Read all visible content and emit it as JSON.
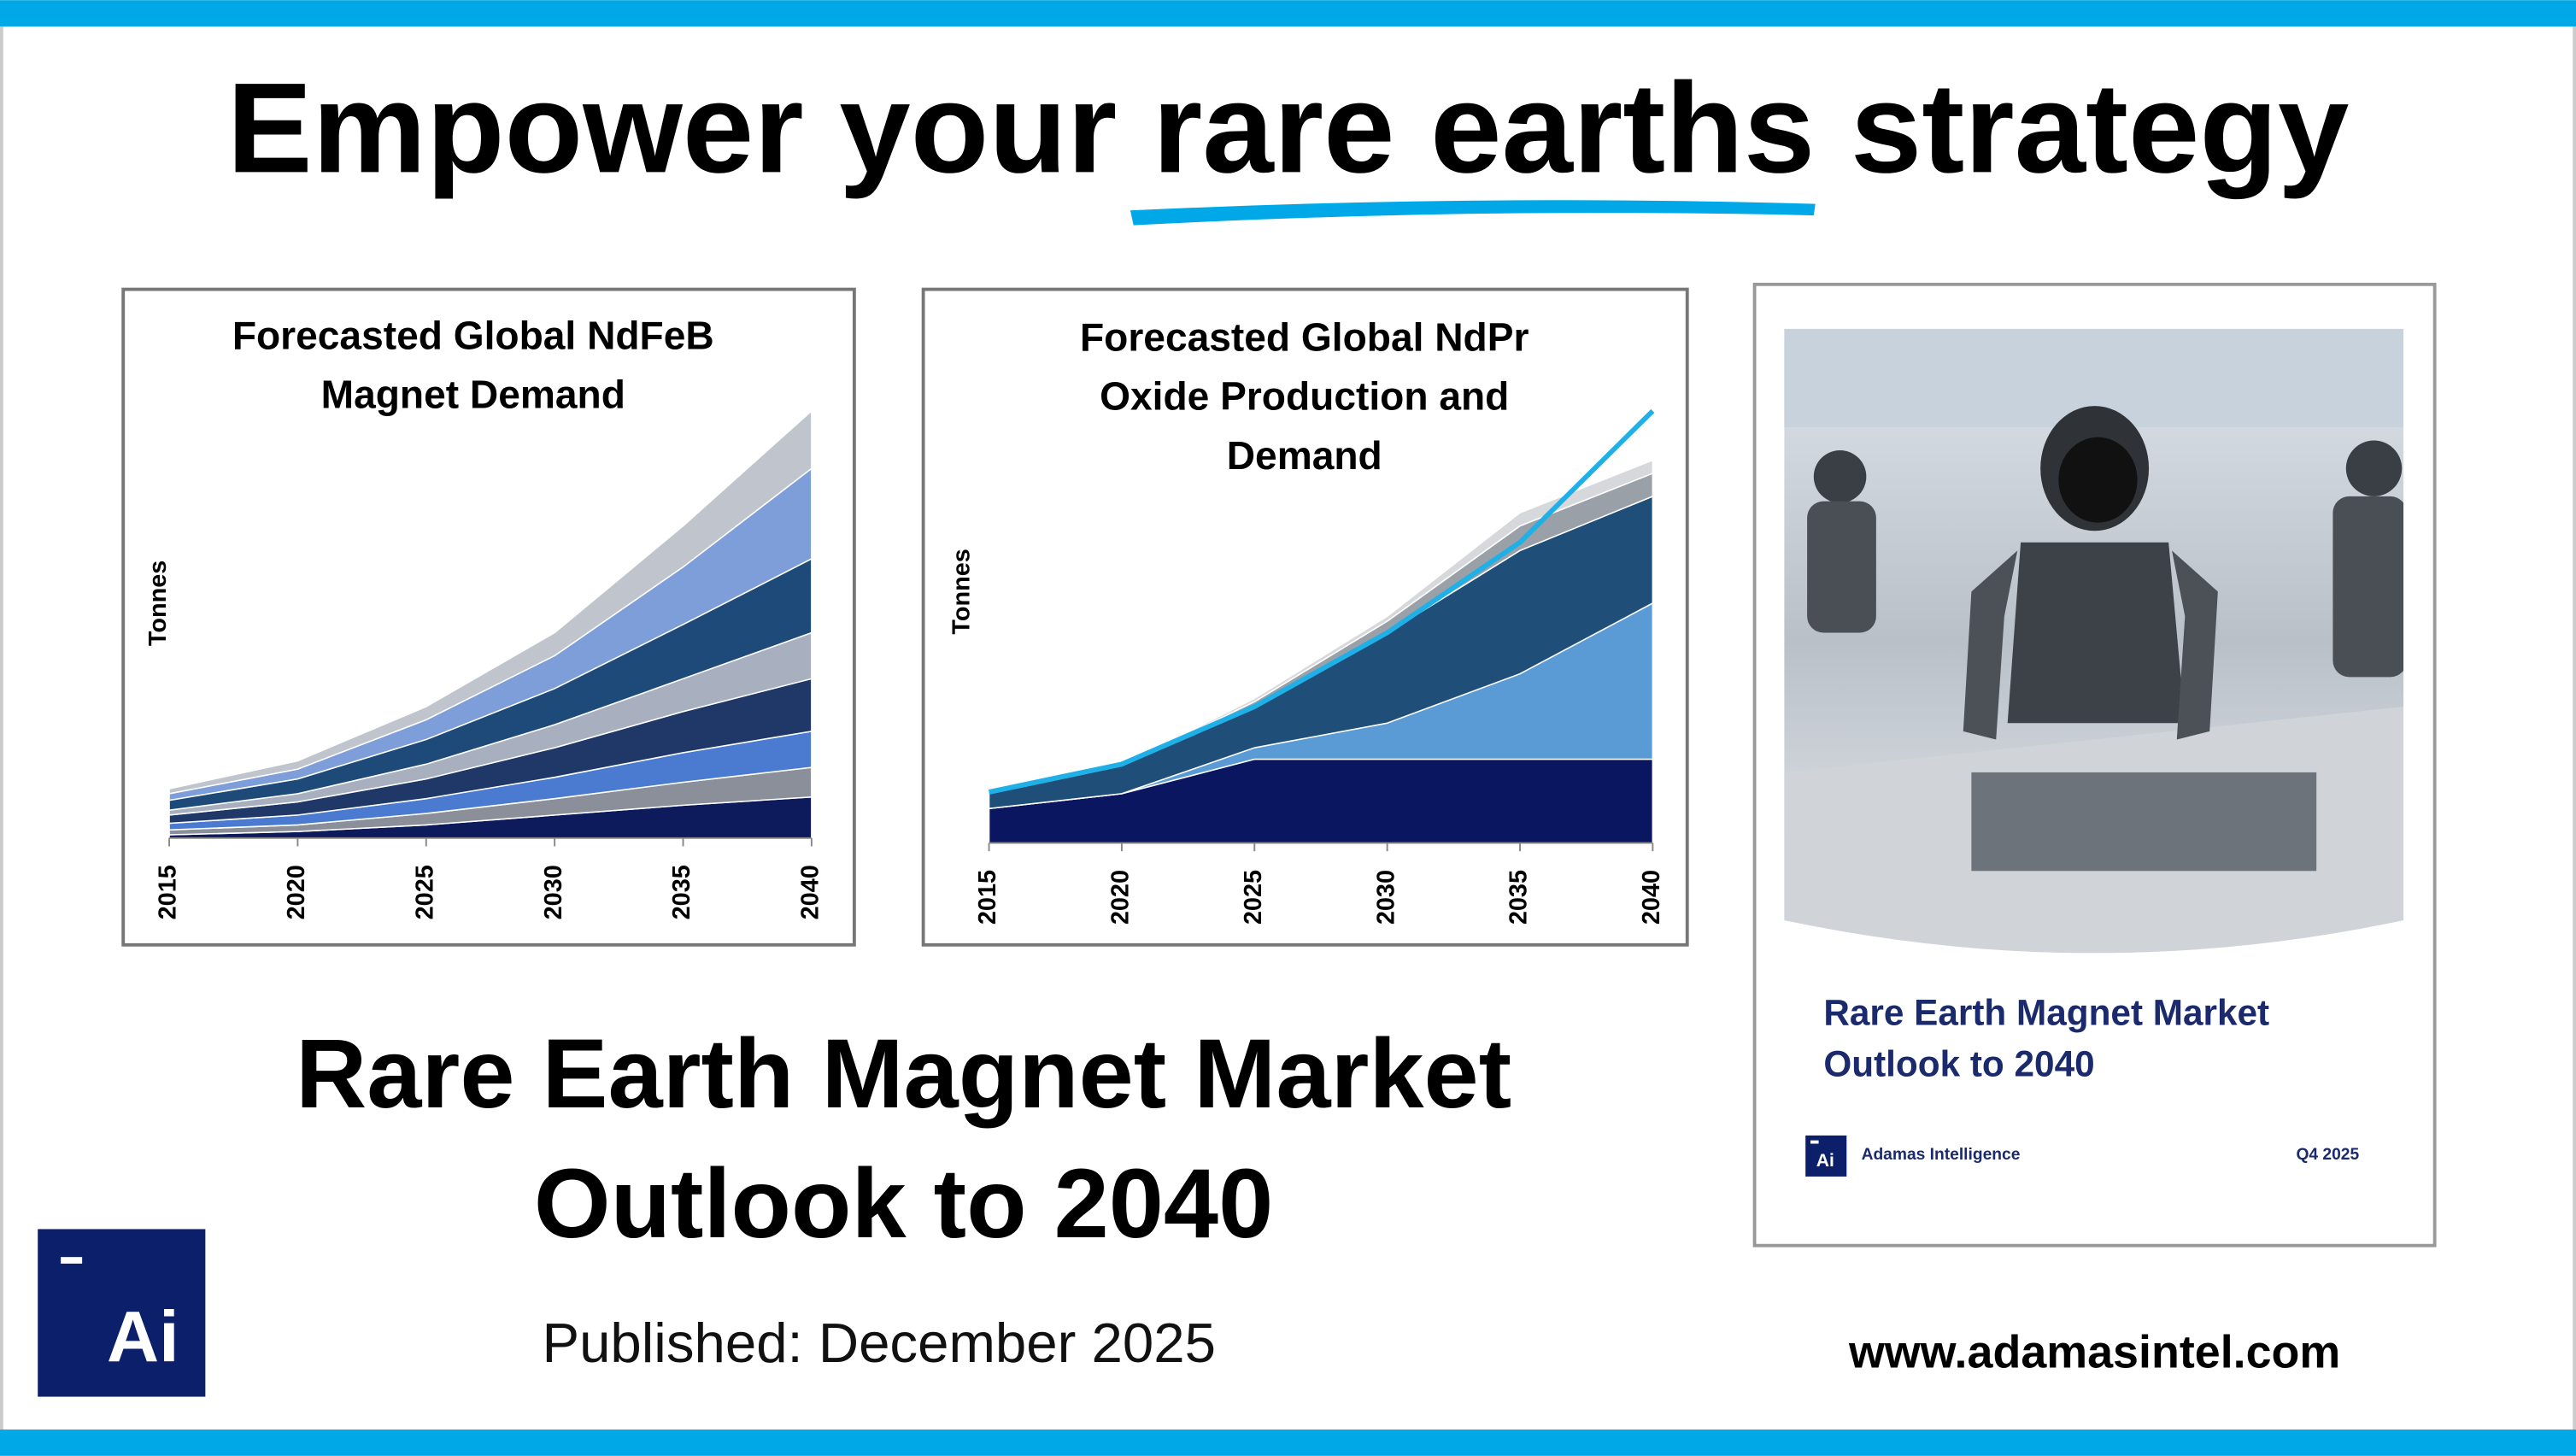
{
  "header": {
    "title": "Empower your rare earths strategy"
  },
  "chart_data": [
    {
      "type": "area",
      "stacked": true,
      "title": [
        "Forecasted Global NdFeB",
        "Magnet Demand"
      ],
      "y_label": "Tonnes",
      "x": [
        2015,
        2020,
        2025,
        2030,
        2035,
        2040
      ],
      "xlim": [
        2015,
        2040
      ],
      "xticks": [
        2015,
        2020,
        2025,
        2030,
        2035,
        2040
      ],
      "ylim": [
        0,
        300
      ],
      "series": [
        {
          "color": "#0d1a5c",
          "values": [
            2,
            4,
            8,
            14,
            20,
            25
          ]
        },
        {
          "color": "#8a8f99",
          "values": [
            3,
            4,
            7,
            10,
            14,
            18
          ]
        },
        {
          "color": "#4a7bd0",
          "values": [
            4,
            6,
            9,
            13,
            18,
            22
          ]
        },
        {
          "color": "#1f3868",
          "values": [
            5,
            8,
            12,
            18,
            25,
            32
          ]
        },
        {
          "color": "#a8b0c0",
          "values": [
            3,
            5,
            9,
            14,
            20,
            28
          ]
        },
        {
          "color": "#1e4a7a",
          "values": [
            6,
            9,
            15,
            22,
            33,
            45
          ]
        },
        {
          "color": "#7d9ed8",
          "values": [
            4,
            6,
            12,
            20,
            35,
            55
          ]
        },
        {
          "color": "#c0c4cc",
          "values": [
            3,
            5,
            8,
            14,
            25,
            35
          ]
        }
      ]
    },
    {
      "type": "area",
      "stacked": true,
      "title": [
        "Forecasted Global NdPr",
        "Oxide Production and",
        "Demand"
      ],
      "y_label": "Tonnes",
      "x": [
        2015,
        2020,
        2025,
        2030,
        2035,
        2040
      ],
      "xlim": [
        2015,
        2040
      ],
      "xticks": [
        2015,
        2020,
        2025,
        2030,
        2035,
        2040
      ],
      "ylim": [
        0,
        300
      ],
      "series": [
        {
          "color": "#0b1660",
          "values": [
            21,
            30,
            51,
            51,
            51,
            51
          ]
        },
        {
          "color": "#5b9bd5",
          "values": [
            0,
            0,
            7,
            22,
            52,
            95
          ]
        },
        {
          "color": "#1f4e79",
          "values": [
            9,
            17,
            25,
            55,
            75,
            65
          ]
        },
        {
          "color": "#9aa0a8",
          "values": [
            0,
            0,
            3,
            7,
            15,
            14
          ]
        },
        {
          "color": "#d6d8dc",
          "values": [
            0,
            0,
            2,
            3,
            8,
            8
          ]
        },
        {
          "type": "line",
          "color": "#1fb0e8",
          "values": [
            31,
            48,
            83,
            128,
            183,
            263
          ]
        }
      ]
    }
  ],
  "report_cover": {
    "title": [
      "Rare Earth Magnet Market",
      "Outlook to 2040"
    ],
    "logo": "Ai",
    "publisher": "Adamas Intelligence",
    "edition": "Q4 2025"
  },
  "main": {
    "title": [
      "Rare Earth Magnet Market",
      "Outlook to 2040"
    ],
    "published": "Published: December 2025"
  },
  "logo": "Ai",
  "website": "www.adamasintel.com"
}
